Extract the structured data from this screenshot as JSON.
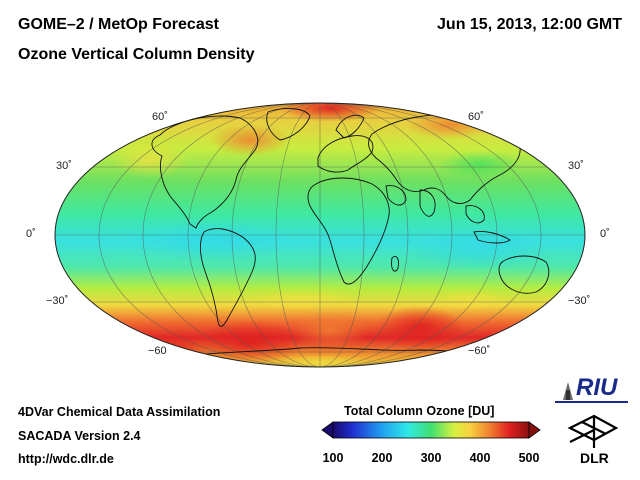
{
  "header": {
    "title": "GOME–2 / MetOp Forecast",
    "subtitle": "Ozone Vertical Column Density",
    "datetime": "Jun 15, 2013, 12:00 GMT"
  },
  "map": {
    "projection": "Mollweide / Hammer equal-area",
    "lat_labels_left": [
      "60˚",
      "30˚",
      "0˚",
      "−30˚",
      "−60"
    ],
    "lat_labels_right": [
      "60˚",
      "30˚",
      "0˚",
      "−30˚",
      "−60˚"
    ]
  },
  "colorbar": {
    "title": "Total Column Ozone [DU]",
    "ticks": [
      "100",
      "200",
      "300",
      "400",
      "500"
    ],
    "colors": [
      "#1a0a6e",
      "#2030d0",
      "#20a0f0",
      "#30e8e8",
      "#40e070",
      "#d8f040",
      "#f8d040",
      "#f08030",
      "#e02020",
      "#8a1010"
    ]
  },
  "footer": {
    "line1": "4DVar Chemical Data Assimilation",
    "line2": "SACADA Version 2.4",
    "line3": "http://wdc.dlr.de"
  },
  "logos": {
    "riu": "RIU",
    "dlr": "DLR"
  }
}
